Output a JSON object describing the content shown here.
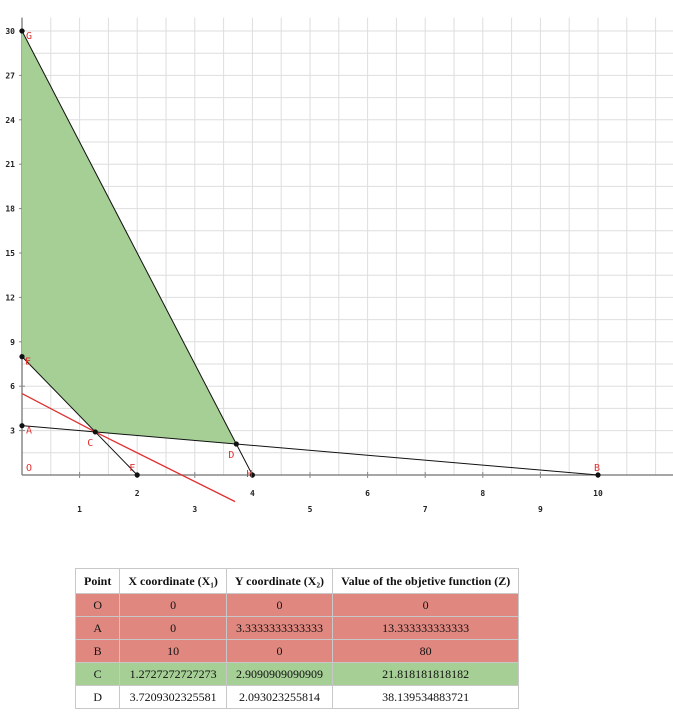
{
  "chart_data": {
    "type": "line",
    "xlim": [
      0,
      11.5
    ],
    "ylim": [
      0,
      30.9
    ],
    "grid": true,
    "x_ticks": [
      1,
      2,
      3,
      4,
      5,
      6,
      7,
      8,
      9,
      10
    ],
    "y_ticks": [
      3,
      6,
      9,
      12,
      15,
      18,
      21,
      24,
      27,
      30
    ],
    "feasible_region": {
      "color": "#a5cf95",
      "vertices": [
        [
          0,
          30
        ],
        [
          0,
          8
        ],
        [
          1.2727,
          2.9091
        ],
        [
          3.7209,
          2.093
        ]
      ]
    },
    "constraint_lines": [
      {
        "color": "#111111",
        "points": [
          [
            0,
            30
          ],
          [
            4,
            0
          ]
        ]
      },
      {
        "color": "#111111",
        "points": [
          [
            0,
            8
          ],
          [
            2,
            0
          ]
        ]
      },
      {
        "color": "#111111",
        "points": [
          [
            0,
            3.3333
          ],
          [
            10,
            0
          ]
        ]
      },
      {
        "color": "#e03030",
        "points": [
          [
            0,
            5.5
          ],
          [
            1.2727,
            2.9091
          ],
          [
            3.7,
            -1.8
          ]
        ]
      }
    ],
    "points": [
      {
        "label": "O",
        "x": 0,
        "y": 0,
        "marker": false
      },
      {
        "label": "A",
        "x": 0,
        "y": 3.3333,
        "marker": true
      },
      {
        "label": "B",
        "x": 10,
        "y": 0,
        "marker": true
      },
      {
        "label": "C",
        "x": 1.2727,
        "y": 2.9091,
        "marker": true
      },
      {
        "label": "D",
        "x": 3.7209,
        "y": 2.093,
        "marker": true
      },
      {
        "label": "E",
        "x": 0,
        "y": 8,
        "marker": true
      },
      {
        "label": "F",
        "x": 2,
        "y": 0,
        "marker": true
      },
      {
        "label": "G",
        "x": 0,
        "y": 30,
        "marker": true
      },
      {
        "label": "H",
        "x": 4,
        "y": 0,
        "marker": true
      }
    ]
  },
  "table": {
    "headers": [
      "Point",
      "X coordinate (X₁)",
      "Y coordinate (X₂)",
      "Value of the objetive function (Z)"
    ],
    "rows": [
      {
        "status": "red",
        "cells": [
          "O",
          "0",
          "0",
          "0"
        ]
      },
      {
        "status": "red",
        "cells": [
          "A",
          "0",
          "3.3333333333333",
          "13.333333333333"
        ]
      },
      {
        "status": "red",
        "cells": [
          "B",
          "10",
          "0",
          "80"
        ]
      },
      {
        "status": "green",
        "cells": [
          "C",
          "1.2727272727273",
          "2.9090909090909",
          "21.818181818182"
        ]
      },
      {
        "status": "white",
        "cells": [
          "D",
          "3.7209302325581",
          "2.093023255814",
          "38.139534883721"
        ]
      }
    ]
  }
}
